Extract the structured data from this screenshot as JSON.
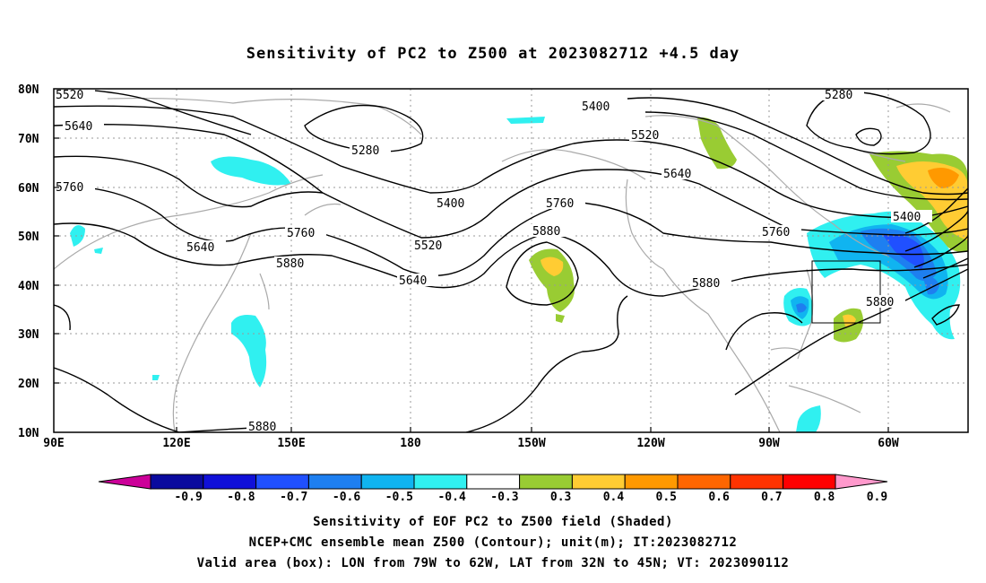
{
  "title": "Sensitivity of PC2 to Z500 at 2023082712 +4.5 day",
  "lat_labels": [
    "80N",
    "70N",
    "60N",
    "50N",
    "40N",
    "30N",
    "20N",
    "10N"
  ],
  "lon_labels": [
    "90E",
    "120E",
    "150E",
    "180",
    "150W",
    "120W",
    "90W",
    "60W"
  ],
  "contour_labels": [
    {
      "text": "5520"
    },
    {
      "text": "5640"
    },
    {
      "text": "5760"
    },
    {
      "text": "5280"
    },
    {
      "text": "5400"
    },
    {
      "text": "5520"
    },
    {
      "text": "5640"
    },
    {
      "text": "5280"
    },
    {
      "text": "5400"
    },
    {
      "text": "5760"
    },
    {
      "text": "5880"
    },
    {
      "text": "5760"
    },
    {
      "text": "5640"
    },
    {
      "text": "5880"
    },
    {
      "text": "5520"
    },
    {
      "text": "5640"
    },
    {
      "text": "5760"
    },
    {
      "text": "5880"
    },
    {
      "text": "5400"
    },
    {
      "text": "5880"
    },
    {
      "text": "5880"
    }
  ],
  "colorbar": {
    "ticks": [
      "-0.9",
      "-0.8",
      "-0.7",
      "-0.6",
      "-0.5",
      "-0.4",
      "-0.3",
      "0.3",
      "0.4",
      "0.5",
      "0.6",
      "0.7",
      "0.8",
      "0.9"
    ],
    "colors": [
      "#0a0a9e",
      "#1010d8",
      "#2050ff",
      "#1e7ff0",
      "#10b4f0",
      "#30f0f0",
      "#ffffff",
      "#99cc33",
      "#ffcc33",
      "#ff9900",
      "#ff6600",
      "#ff3300",
      "#ff0000"
    ],
    "left_arrow_color": "#cc0099",
    "right_arrow_color": "#ff99cc"
  },
  "captions": {
    "line1": "Sensitivity of EOF PC2 to Z500 field (Shaded)",
    "line2": "NCEP+CMC ensemble mean Z500 (Contour); unit(m); IT:2023082712",
    "line3": "Valid area (box): LON from 79W to 62W, LAT from 32N to 45N; VT: 2023090112"
  }
}
